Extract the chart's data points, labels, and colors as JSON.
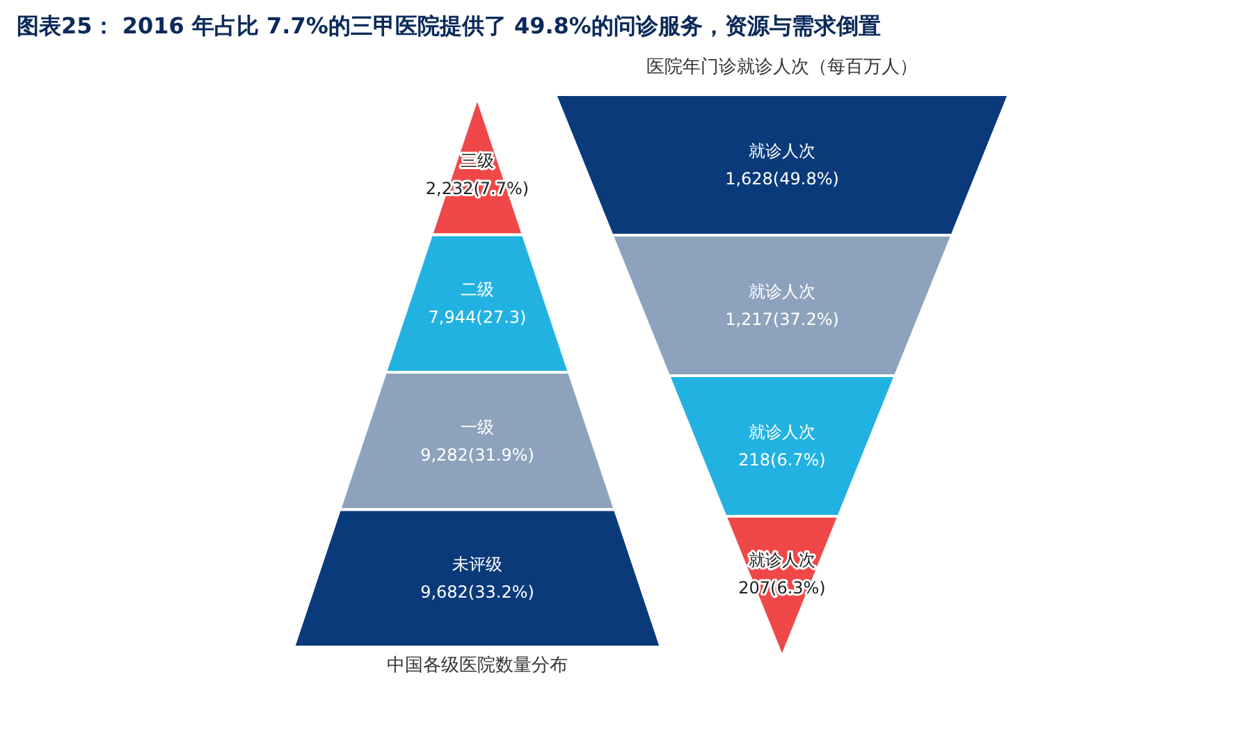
{
  "chart_data": [
    {
      "type": "other",
      "title": "图表25： 2016 年占比 7.7%的三甲医院提供了 49.8%的问诊服务，资源与需求倒置",
      "xlabel": "中国各级医院数量分布",
      "categories": [
        "三级",
        "二级",
        "一级",
        "未评级"
      ],
      "values": [
        2232,
        7944,
        9282,
        9682
      ],
      "value_labels": [
        "2,232(7.7%)",
        "7,944(27.3)",
        "9,282(31.9%)",
        "9,682(33.2%)"
      ],
      "colors": [
        "#f04848",
        "#22b2e2",
        "#8da3bd",
        "#0b3a7a"
      ]
    },
    {
      "type": "other",
      "title": "医院年门诊就诊人次（每百万人）",
      "categories": [
        "就诊人次",
        "就诊人次",
        "就诊人次",
        "就诊人次"
      ],
      "values": [
        1628,
        1217,
        218,
        207
      ],
      "value_labels": [
        "1,628(49.8%)",
        "1,217(37.2%)",
        "218(6.7%)",
        "207(6.3%)"
      ],
      "colors": [
        "#0b3a7a",
        "#8da3bd",
        "#22b2e2",
        "#f04848"
      ]
    }
  ]
}
